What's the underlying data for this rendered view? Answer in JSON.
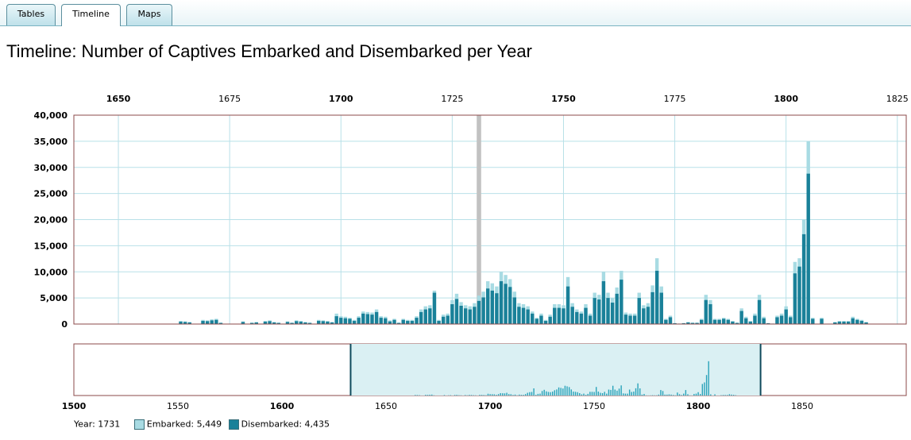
{
  "tabs": [
    {
      "label": "Tables",
      "active": false
    },
    {
      "label": "Timeline",
      "active": true
    },
    {
      "label": "Maps",
      "active": false
    }
  ],
  "page_title": "Timeline: Number of Captives Embarked and Disembarked per Year",
  "colors": {
    "embarked": "#a8dbe3",
    "disembarked": "#1a8199",
    "grid": "#b8e0e8",
    "border": "#8b4a4a",
    "selection": "#daf0f3",
    "highlight": "#c2c2c2",
    "overview_bars": "#2aa3ba"
  },
  "legend": {
    "year_label": "Year: 1731",
    "embarked_label": "Embarked: 5,449",
    "disembarked_label": "Disembarked: 4,435"
  },
  "chart_data": [
    {
      "type": "bar",
      "title": "Timeline: Number of Captives Embarked and Disembarked per Year",
      "x_axis_position": "top",
      "xlim": [
        1640,
        1827
      ],
      "ylim": [
        0,
        40000
      ],
      "x_ticks": [
        1650,
        1675,
        1700,
        1725,
        1750,
        1775,
        1800,
        1825
      ],
      "x_tick_labels": [
        "1650",
        "1675",
        "1700",
        "1725",
        "1750",
        "1775",
        "1800",
        "1825"
      ],
      "x_ticks_bold": [
        1650,
        1700,
        1750,
        1800
      ],
      "y_ticks": [
        0,
        5000,
        10000,
        15000,
        20000,
        25000,
        30000,
        35000,
        40000
      ],
      "y_tick_labels": [
        "0",
        "5,000",
        "10,000",
        "15,000",
        "20,000",
        "25,000",
        "30,000",
        "35,000",
        "40,000"
      ],
      "grid": true,
      "highlight_year": 1731,
      "series": [
        {
          "name": "Embarked",
          "stacked_behind": true
        },
        {
          "name": "Disembarked"
        }
      ],
      "points": [
        [
          1664,
          600,
          450
        ],
        [
          1665,
          500,
          400
        ],
        [
          1666,
          400,
          300
        ],
        [
          1669,
          800,
          600
        ],
        [
          1670,
          700,
          550
        ],
        [
          1671,
          900,
          700
        ],
        [
          1672,
          1000,
          800
        ],
        [
          1673,
          300,
          200
        ],
        [
          1678,
          500,
          400
        ],
        [
          1680,
          300,
          200
        ],
        [
          1681,
          400,
          300
        ],
        [
          1683,
          600,
          450
        ],
        [
          1684,
          700,
          550
        ],
        [
          1685,
          400,
          300
        ],
        [
          1686,
          300,
          200
        ],
        [
          1688,
          500,
          400
        ],
        [
          1689,
          300,
          200
        ],
        [
          1690,
          700,
          550
        ],
        [
          1691,
          600,
          450
        ],
        [
          1692,
          400,
          300
        ],
        [
          1693,
          300,
          200
        ],
        [
          1695,
          800,
          600
        ],
        [
          1696,
          700,
          550
        ],
        [
          1697,
          600,
          450
        ],
        [
          1698,
          400,
          300
        ],
        [
          1699,
          2000,
          1500
        ],
        [
          1700,
          1500,
          1200
        ],
        [
          1701,
          1400,
          1100
        ],
        [
          1702,
          1200,
          1000
        ],
        [
          1703,
          800,
          600
        ],
        [
          1704,
          1500,
          1200
        ],
        [
          1705,
          2400,
          2000
        ],
        [
          1706,
          2300,
          1900
        ],
        [
          1707,
          2200,
          1800
        ],
        [
          1708,
          2800,
          2300
        ],
        [
          1709,
          1500,
          1200
        ],
        [
          1710,
          1400,
          1100
        ],
        [
          1711,
          700,
          500
        ],
        [
          1712,
          1000,
          800
        ],
        [
          1713,
          300,
          200
        ],
        [
          1714,
          1000,
          800
        ],
        [
          1715,
          800,
          600
        ],
        [
          1716,
          800,
          600
        ],
        [
          1717,
          1500,
          1200
        ],
        [
          1718,
          2800,
          2300
        ],
        [
          1719,
          3400,
          2800
        ],
        [
          1720,
          3600,
          3000
        ],
        [
          1721,
          6400,
          6000
        ],
        [
          1722,
          800,
          600
        ],
        [
          1723,
          1800,
          1400
        ],
        [
          1724,
          2000,
          1600
        ],
        [
          1725,
          4600,
          3800
        ],
        [
          1726,
          5800,
          4800
        ],
        [
          1727,
          4200,
          3500
        ],
        [
          1728,
          3600,
          3000
        ],
        [
          1729,
          3400,
          2800
        ],
        [
          1730,
          4000,
          3300
        ],
        [
          1731,
          5449,
          4435
        ],
        [
          1732,
          6200,
          5100
        ],
        [
          1733,
          8200,
          6800
        ],
        [
          1734,
          7800,
          6400
        ],
        [
          1735,
          7200,
          5900
        ],
        [
          1736,
          10000,
          8200
        ],
        [
          1737,
          9400,
          7700
        ],
        [
          1738,
          8600,
          7100
        ],
        [
          1739,
          6200,
          5100
        ],
        [
          1740,
          4000,
          3300
        ],
        [
          1741,
          3800,
          3100
        ],
        [
          1742,
          3400,
          2800
        ],
        [
          1743,
          2400,
          2000
        ],
        [
          1744,
          1200,
          1000
        ],
        [
          1745,
          2000,
          1600
        ],
        [
          1746,
          800,
          600
        ],
        [
          1747,
          1800,
          1400
        ],
        [
          1748,
          3800,
          3100
        ],
        [
          1749,
          3800,
          3100
        ],
        [
          1750,
          3600,
          3000
        ],
        [
          1751,
          9000,
          7200
        ],
        [
          1752,
          4000,
          3300
        ],
        [
          1753,
          2800,
          2300
        ],
        [
          1754,
          2400,
          2000
        ],
        [
          1755,
          3800,
          3100
        ],
        [
          1756,
          2000,
          1600
        ],
        [
          1757,
          6000,
          5000
        ],
        [
          1758,
          5600,
          4700
        ],
        [
          1759,
          10000,
          8200
        ],
        [
          1760,
          6000,
          5000
        ],
        [
          1761,
          5000,
          4100
        ],
        [
          1762,
          7000,
          5800
        ],
        [
          1763,
          10200,
          8500
        ],
        [
          1764,
          2200,
          1800
        ],
        [
          1765,
          2000,
          1600
        ],
        [
          1766,
          2000,
          1600
        ],
        [
          1767,
          6000,
          5000
        ],
        [
          1768,
          3600,
          3000
        ],
        [
          1769,
          4000,
          3300
        ],
        [
          1770,
          7400,
          6100
        ],
        [
          1771,
          12600,
          10200
        ],
        [
          1772,
          7200,
          6000
        ],
        [
          1773,
          1000,
          800
        ],
        [
          1774,
          1600,
          1300
        ],
        [
          1775,
          200,
          150
        ],
        [
          1776,
          100,
          80
        ],
        [
          1777,
          200,
          150
        ],
        [
          1778,
          400,
          300
        ],
        [
          1779,
          300,
          200
        ],
        [
          1780,
          300,
          200
        ],
        [
          1781,
          1000,
          800
        ],
        [
          1782,
          5600,
          4600
        ],
        [
          1783,
          4600,
          3800
        ],
        [
          1784,
          1000,
          800
        ],
        [
          1785,
          1000,
          800
        ],
        [
          1786,
          1200,
          1000
        ],
        [
          1787,
          1000,
          800
        ],
        [
          1788,
          600,
          450
        ],
        [
          1789,
          300,
          200
        ],
        [
          1790,
          3000,
          2500
        ],
        [
          1791,
          1400,
          1100
        ],
        [
          1792,
          600,
          450
        ],
        [
          1793,
          2000,
          1600
        ],
        [
          1794,
          5600,
          4600
        ],
        [
          1795,
          1400,
          1100
        ],
        [
          1796,
          200,
          150
        ],
        [
          1797,
          100,
          80
        ],
        [
          1798,
          1600,
          1300
        ],
        [
          1799,
          2000,
          1600
        ],
        [
          1800,
          3400,
          2800
        ],
        [
          1801,
          1600,
          1300
        ],
        [
          1802,
          11900,
          9700
        ],
        [
          1803,
          12600,
          11000
        ],
        [
          1804,
          20000,
          17200
        ],
        [
          1805,
          35000,
          28800
        ],
        [
          1806,
          1200,
          1000
        ],
        [
          1808,
          1200,
          1000
        ],
        [
          1811,
          400,
          300
        ],
        [
          1812,
          600,
          450
        ],
        [
          1813,
          600,
          450
        ],
        [
          1814,
          600,
          450
        ],
        [
          1815,
          1400,
          1100
        ],
        [
          1816,
          1000,
          800
        ],
        [
          1817,
          800,
          600
        ],
        [
          1818,
          400,
          300
        ]
      ]
    },
    {
      "type": "area",
      "xlim": [
        1500,
        1900
      ],
      "x_ticks": [
        1500,
        1550,
        1600,
        1650,
        1700,
        1750,
        1800,
        1850
      ],
      "x_tick_labels": [
        "1500",
        "1550",
        "1600",
        "1650",
        "1700",
        "1750",
        "1800",
        "1850"
      ],
      "x_ticks_bold": [
        1500,
        1600,
        1700,
        1800
      ],
      "selection_range": [
        1633,
        1830
      ],
      "note": "overview navigator showing the same yearly series at reduced scale"
    }
  ]
}
